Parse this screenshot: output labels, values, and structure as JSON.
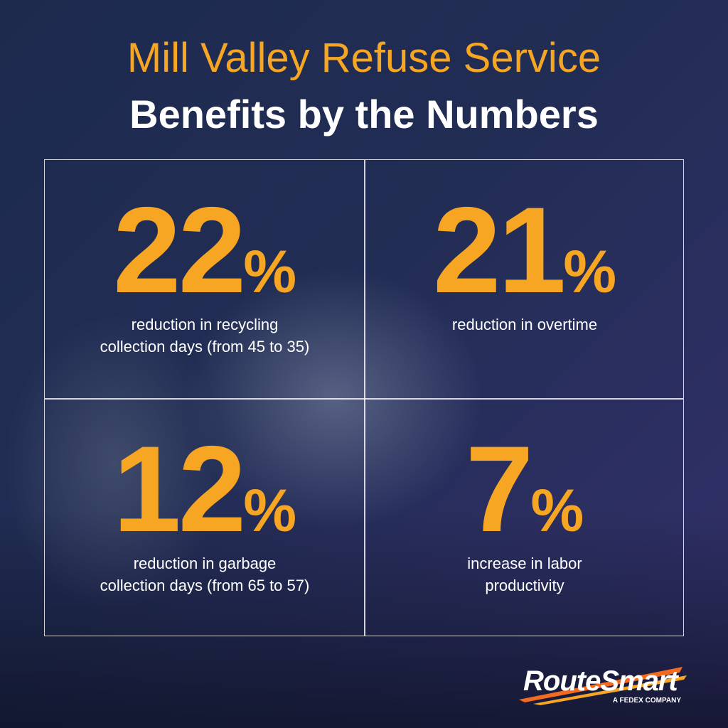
{
  "header": {
    "title": "Mill Valley Refuse Service",
    "subtitle": "Benefits by the Numbers"
  },
  "stats": [
    {
      "number": "22",
      "unit": "%",
      "description": [
        "reduction in recycling",
        "collection days (from 45 to 35)"
      ]
    },
    {
      "number": "21",
      "unit": "%",
      "description": [
        "reduction in overtime"
      ]
    },
    {
      "number": "12",
      "unit": "%",
      "description": [
        "reduction in garbage",
        "collection days (from 65 to 57)"
      ]
    },
    {
      "number": "7",
      "unit": "%",
      "description": [
        "increase in labor",
        "productivity"
      ]
    }
  ],
  "logo": {
    "name": "RouteSmart",
    "tagline": "A FEDEX COMPANY"
  }
}
